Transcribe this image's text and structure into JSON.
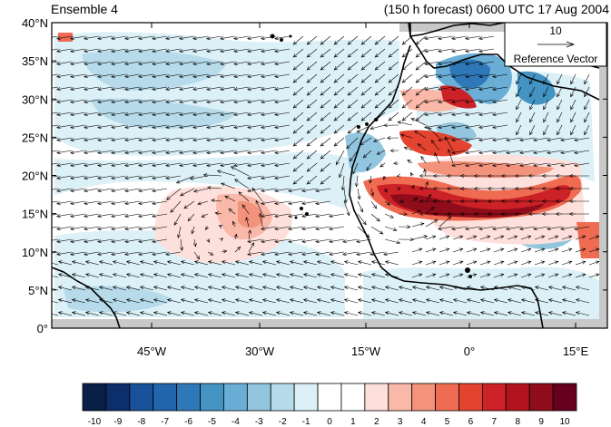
{
  "title_left": "Ensemble 4",
  "title_right": "(150 h forecast) 0600 UTC 17 Aug 2004",
  "reference_vector": {
    "value": "10",
    "label": "Reference Vector"
  },
  "y_axis": {
    "ticks": [
      "40°N",
      "35°N",
      "30°N",
      "25°N",
      "20°N",
      "15°N",
      "10°N",
      "5°N",
      "0°"
    ]
  },
  "x_axis": {
    "ticks": [
      "45°W",
      "30°W",
      "15°W",
      "0°",
      "15°E"
    ]
  },
  "colorbar": {
    "labels": [
      "-10",
      "-9",
      "-8",
      "-7",
      "-6",
      "-5",
      "-4",
      "-3",
      "-2",
      "-1",
      "0",
      "1",
      "2",
      "3",
      "4",
      "5",
      "6",
      "7",
      "8",
      "9",
      "10"
    ],
    "colors": [
      "#0a1f45",
      "#0c2e6b",
      "#18509a",
      "#2166ac",
      "#2f78b8",
      "#4393c3",
      "#6aaed6",
      "#92c5de",
      "#b7dbea",
      "#dcf0f8",
      "#ffffff",
      "#ffffff",
      "#fde0dc",
      "#f9b8a8",
      "#f4937c",
      "#ef6b52",
      "#e4442f",
      "#cc2126",
      "#b2141f",
      "#8f0d1a",
      "#67001f"
    ]
  },
  "colors": {
    "land_outline": "#000000",
    "missing": "#c8c8c8",
    "vector": "#000000"
  }
}
